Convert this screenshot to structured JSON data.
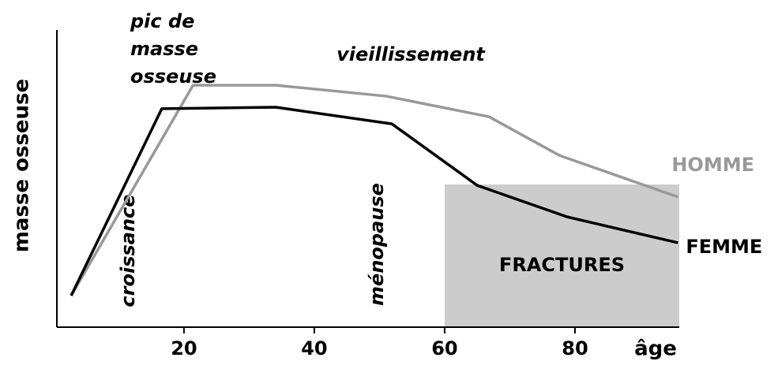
{
  "chart_data": {
    "type": "line",
    "y_label": "masse osseuse",
    "x_label": "âge",
    "xlim": [
      0.5,
      96
    ],
    "xticks": [
      20,
      40,
      60,
      80
    ],
    "ylim": [
      0,
      100
    ],
    "series": [
      {
        "name": "FEMME",
        "color": "#000000",
        "x": [
          2.7,
          16.6,
          34.1,
          51.9,
          65.0,
          78.8,
          95.8
        ],
        "values": [
          10.6,
          73.5,
          74.0,
          68.4,
          47.7,
          37.1,
          28.4
        ]
      },
      {
        "name": "HOMME",
        "color": "#999999",
        "x": [
          2.7,
          21.4,
          34.1,
          51.1,
          66.8,
          77.6,
          95.8
        ],
        "values": [
          10.6,
          81.4,
          81.4,
          77.7,
          70.8,
          57.8,
          43.8
        ]
      }
    ],
    "fracture_zone": {
      "label": "FRACTURES",
      "x": [
        60,
        96
      ],
      "y": [
        0,
        48
      ],
      "color": "#cccccc"
    },
    "annotations": {
      "peak": [
        "pic de",
        "masse",
        "osseuse"
      ],
      "aging": "vieillissement",
      "growth": "croissance",
      "menopause": "ménopause"
    }
  }
}
